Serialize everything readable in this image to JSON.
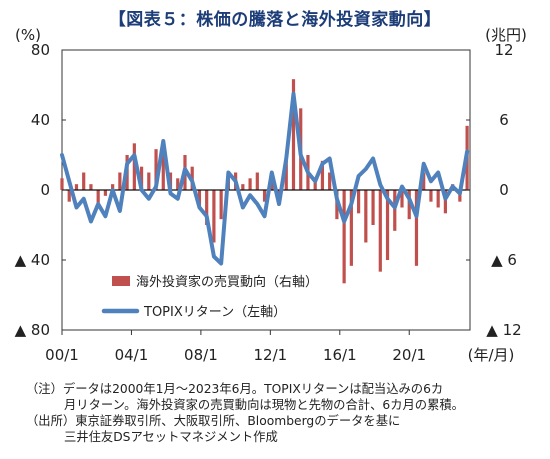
{
  "title": "【図表５：株価の騰落と海外投資家動向】",
  "chart_data": {
    "type": "bar+line",
    "left_unit": "(%)",
    "right_unit": "(兆円)",
    "x_unit": "(年/月)",
    "left_ylim": [
      -80,
      80
    ],
    "right_ylim": [
      12,
      -12
    ],
    "left_ticks": [
      {
        "v": 80,
        "label": "80"
      },
      {
        "v": 40,
        "label": "40"
      },
      {
        "v": 0,
        "label": "0"
      },
      {
        "v": -40,
        "label": "▲ 40"
      },
      {
        "v": -80,
        "label": "▲ 80"
      }
    ],
    "right_ticks": [
      {
        "v": 12,
        "label": "12"
      },
      {
        "v": 6,
        "label": "6"
      },
      {
        "v": 0,
        "label": "0"
      },
      {
        "v": -6,
        "label": "▲ 6"
      },
      {
        "v": -12,
        "label": "▲ 12"
      }
    ],
    "x_ticks": [
      {
        "t": 2000.0,
        "label": "00/1"
      },
      {
        "t": 2004.0,
        "label": "04/1"
      },
      {
        "t": 2008.0,
        "label": "08/1"
      },
      {
        "t": 2012.0,
        "label": "12/1"
      },
      {
        "t": 2016.0,
        "label": "16/1"
      },
      {
        "t": 2020.0,
        "label": "20/1"
      }
    ],
    "x_range": [
      2000.0,
      2023.5
    ],
    "series": [
      {
        "name": "海外投資家の売買動向（右軸）",
        "axis": "right",
        "color": "#c0504d",
        "x": [
          "2000/1",
          "2000/6",
          "2000/11",
          "2001/4",
          "2001/9",
          "2002/2",
          "2002/7",
          "2002/12",
          "2003/5",
          "2003/10",
          "2004/3",
          "2004/8",
          "2005/1",
          "2005/6",
          "2005/11",
          "2006/4",
          "2006/9",
          "2007/2",
          "2007/7",
          "2007/12",
          "2008/5",
          "2008/10",
          "2009/3",
          "2009/8",
          "2010/1",
          "2010/6",
          "2010/11",
          "2011/4",
          "2011/9",
          "2012/2",
          "2012/7",
          "2012/12",
          "2013/5",
          "2013/10",
          "2014/3",
          "2014/8",
          "2015/1",
          "2015/6",
          "2015/11",
          "2016/4",
          "2016/9",
          "2017/2",
          "2017/7",
          "2017/12",
          "2018/5",
          "2018/10",
          "2019/3",
          "2019/8",
          "2020/1",
          "2020/6",
          "2020/11",
          "2021/4",
          "2021/9",
          "2022/2",
          "2022/7",
          "2022/12",
          "2023/5"
        ],
        "values": [
          1.0,
          -1.0,
          0.5,
          1.5,
          0.5,
          -1.5,
          -0.5,
          0.5,
          1.5,
          3.0,
          4.0,
          2.0,
          1.5,
          3.5,
          3.8,
          1.5,
          1.0,
          3.0,
          2.0,
          -1.5,
          -3.0,
          -4.5,
          -2.5,
          1.5,
          1.5,
          0.5,
          1.0,
          1.5,
          -1.0,
          1.5,
          -0.5,
          2.5,
          9.5,
          7.0,
          3.0,
          1.0,
          2.5,
          1.5,
          -2.5,
          -8.0,
          -6.5,
          -2.0,
          -4.5,
          -3.0,
          -7.0,
          -6.0,
          -3.5,
          -1.5,
          -2.5,
          -6.5,
          1.5,
          -1.0,
          -1.5,
          -2.0,
          0.5,
          -1.0,
          5.5
        ]
      },
      {
        "name": "TOPIXリターン（左軸）",
        "axis": "left",
        "color": "#4f81bd",
        "x": [
          "2000/1",
          "2000/6",
          "2000/11",
          "2001/4",
          "2001/9",
          "2002/2",
          "2002/7",
          "2002/12",
          "2003/5",
          "2003/10",
          "2004/3",
          "2004/8",
          "2005/1",
          "2005/6",
          "2005/11",
          "2006/4",
          "2006/9",
          "2007/2",
          "2007/7",
          "2007/12",
          "2008/5",
          "2008/10",
          "2009/3",
          "2009/8",
          "2010/1",
          "2010/6",
          "2010/11",
          "2011/4",
          "2011/9",
          "2012/2",
          "2012/7",
          "2012/12",
          "2013/5",
          "2013/10",
          "2014/3",
          "2014/8",
          "2015/1",
          "2015/6",
          "2015/11",
          "2016/4",
          "2016/9",
          "2017/2",
          "2017/7",
          "2017/12",
          "2018/5",
          "2018/10",
          "2019/3",
          "2019/8",
          "2020/1",
          "2020/6",
          "2020/11",
          "2021/4",
          "2021/9",
          "2022/2",
          "2022/7",
          "2022/12",
          "2023/5"
        ],
        "values": [
          20,
          5,
          -10,
          -5,
          -18,
          -8,
          -15,
          0,
          -12,
          15,
          20,
          0,
          -5,
          2,
          28,
          -2,
          -5,
          12,
          5,
          -10,
          -15,
          -38,
          -42,
          10,
          5,
          -10,
          -3,
          -8,
          -15,
          10,
          -8,
          18,
          55,
          20,
          10,
          5,
          15,
          18,
          -5,
          -18,
          -8,
          8,
          12,
          18,
          3,
          -5,
          -10,
          2,
          -5,
          -15,
          15,
          5,
          10,
          -5,
          2,
          -2,
          22
        ]
      }
    ]
  },
  "legend": [
    {
      "label": "海外投資家の売買動向（右軸）",
      "kind": "bar"
    },
    {
      "label": "TOPIXリターン（左軸）",
      "kind": "line"
    }
  ],
  "notes": [
    "（注）データは2000年1月～2023年6月。TOPIXリターンは配当込みの6カ",
    "月リターン。海外投資家の売買動向は現物と先物の合計、6カ月の累積。",
    "（出所）東京証券取引所、大阪取引所、Bloombergのデータを基に",
    "三井住友DSアセットマネジメント作成"
  ]
}
